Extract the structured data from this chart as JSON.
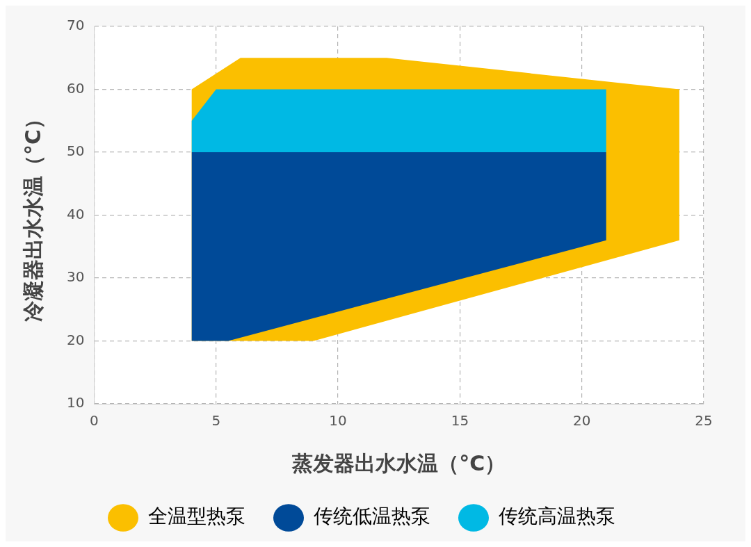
{
  "chart_data": {
    "type": "area",
    "xlabel": "蒸发器出水水温（°C）",
    "ylabel": "冷凝器出水水温（°C）",
    "xlim": [
      0,
      25
    ],
    "xticks": [
      0,
      5,
      10,
      15,
      20,
      25
    ],
    "ylim": [
      10,
      70
    ],
    "yticks": [
      10,
      20,
      30,
      40,
      50,
      60,
      70
    ],
    "grid": true,
    "legend": "bottom",
    "marker": "none",
    "series": [
      {
        "name": "全温型热泵",
        "color": "#fbbf00",
        "x": [
          4,
          4,
          6,
          12,
          24,
          24,
          9,
          4
        ],
        "values": [
          20,
          60,
          65,
          65,
          60,
          36,
          20,
          20
        ]
      },
      {
        "name": "传统低温热泵",
        "color": "#004a98",
        "x": [
          4,
          4,
          21,
          21,
          5.5,
          4
        ],
        "values": [
          20,
          50,
          50,
          36,
          20,
          20
        ]
      },
      {
        "name": "传统高温热泵",
        "color": "#00b9e4",
        "x": [
          4,
          4,
          5,
          21,
          21,
          4
        ],
        "values": [
          50,
          55,
          60,
          60,
          50,
          50
        ]
      }
    ]
  }
}
